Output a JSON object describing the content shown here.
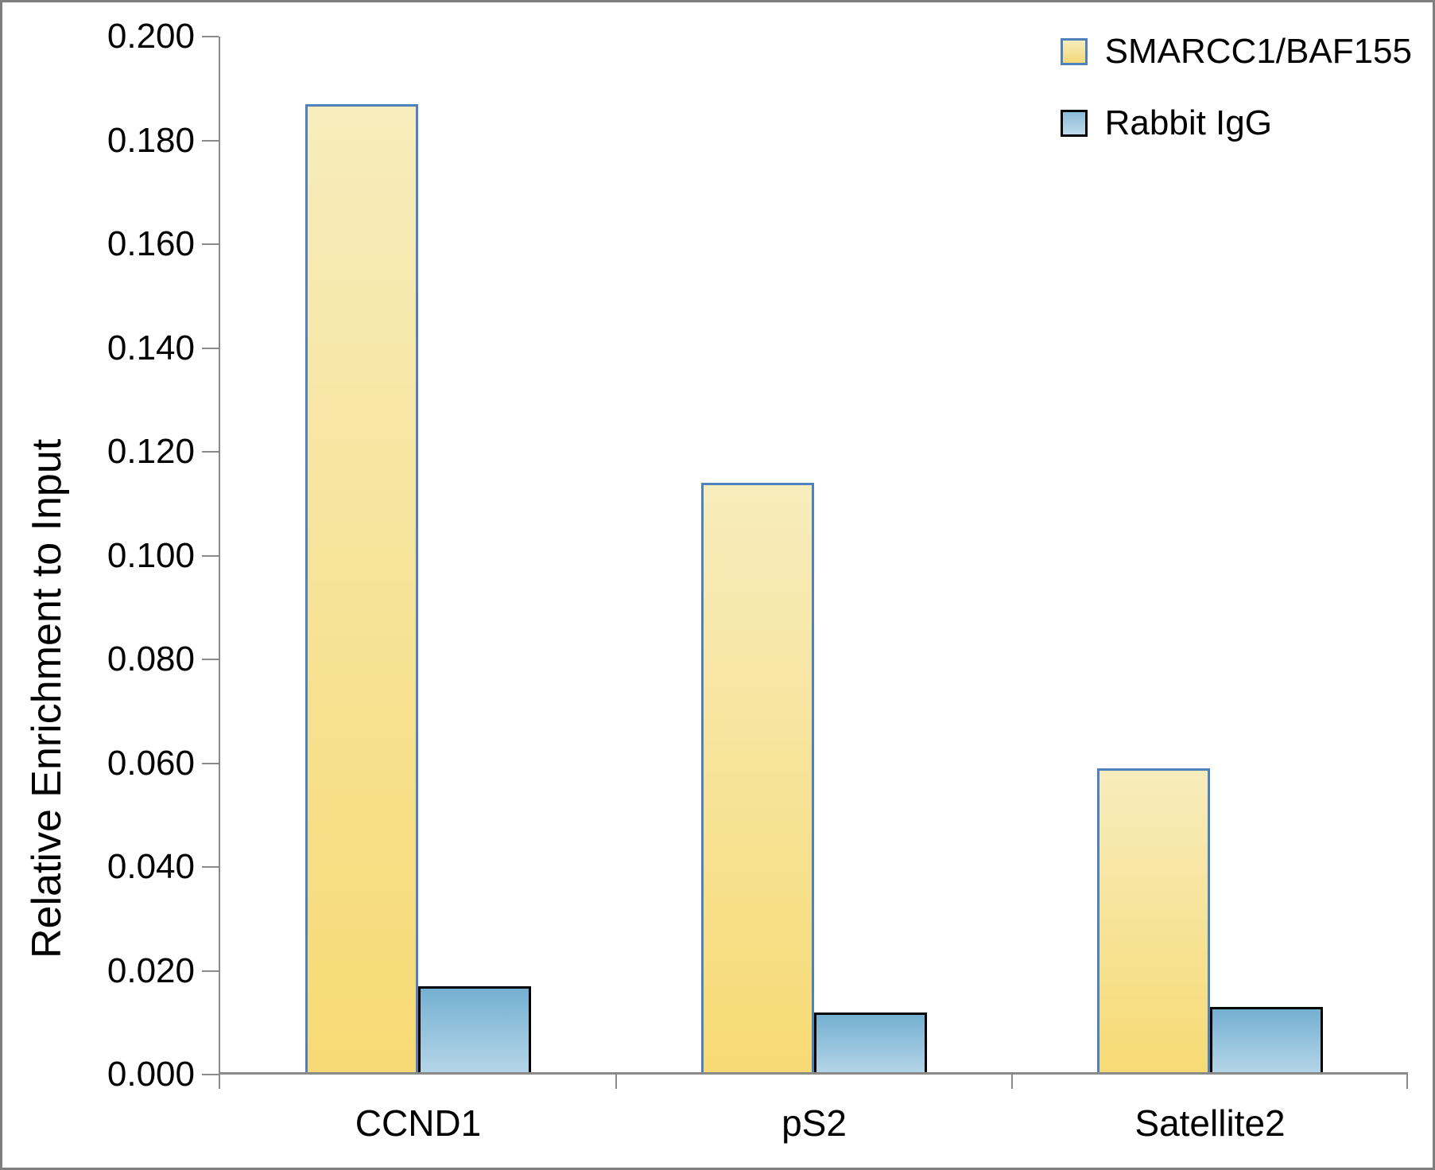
{
  "chart_data": {
    "type": "bar",
    "title": "",
    "xlabel": "",
    "ylabel": "Relative Enrichment to Input",
    "categories": [
      "CCND1",
      "pS2",
      "Satellite2"
    ],
    "series": [
      {
        "name": "SMARCC1/BAF155",
        "values": [
          0.187,
          0.114,
          0.059
        ],
        "fill_top": "#f7ecbc",
        "fill_bottom": "#f7da74",
        "border": "#4f81bd"
      },
      {
        "name": "Rabbit IgG",
        "values": [
          0.017,
          0.012,
          0.013
        ],
        "fill_top": "#74b0d2",
        "fill_bottom": "#b6d6e8",
        "border": "#000000"
      }
    ],
    "ylim": [
      0,
      0.2
    ],
    "ytick_step": 0.02,
    "ytick_labels": [
      "0.000",
      "0.020",
      "0.040",
      "0.060",
      "0.080",
      "0.100",
      "0.120",
      "0.140",
      "0.160",
      "0.180",
      "0.200"
    ],
    "legend_position": "top-right",
    "grid": false,
    "axis_color": "#8a8a8a"
  }
}
